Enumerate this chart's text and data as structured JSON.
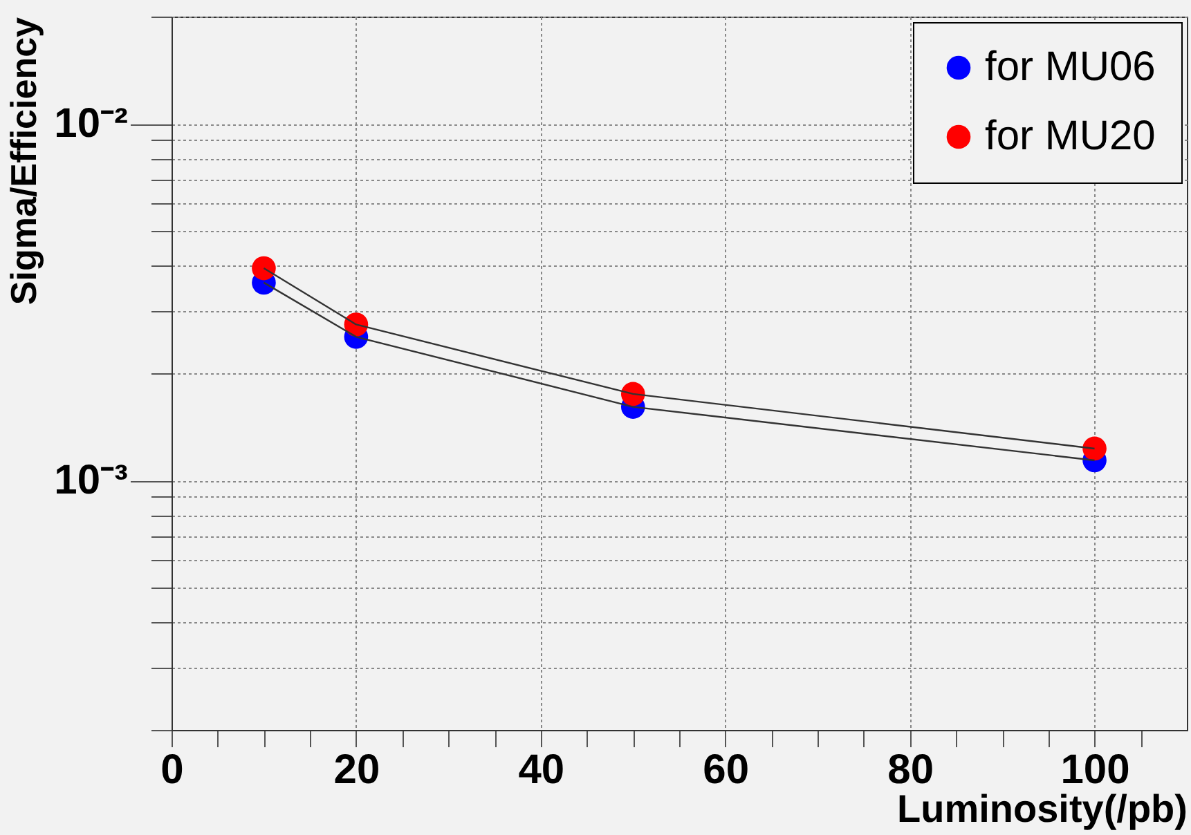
{
  "chart_data": {
    "type": "line",
    "xlabel": "Luminosity(/pb)",
    "ylabel": "Sigma/Efficiency",
    "x": [
      10,
      20,
      50,
      100
    ],
    "series": [
      {
        "name": "for MU06",
        "color": "#0000ff",
        "values": [
          0.00359,
          0.00253,
          0.00161,
          0.00114
        ]
      },
      {
        "name": "for MU20",
        "color": "#ff0000",
        "values": [
          0.00394,
          0.00274,
          0.00175,
          0.00123
        ]
      }
    ],
    "xlim": [
      0,
      110
    ],
    "xticks": [
      0,
      {
        "value": 5,
        "label": null
      },
      {
        "value": 10,
        "label": null
      },
      {
        "value": 15,
        "label": null
      },
      20,
      {
        "value": 25,
        "label": null
      },
      {
        "value": 30,
        "label": null
      },
      {
        "value": 35,
        "label": null
      },
      40,
      {
        "value": 45,
        "label": null
      },
      {
        "value": 50,
        "label": null
      },
      {
        "value": 55,
        "label": null
      },
      60,
      {
        "value": 65,
        "label": null
      },
      {
        "value": 70,
        "label": null
      },
      {
        "value": 75,
        "label": null
      },
      80,
      {
        "value": 85,
        "label": null
      },
      {
        "value": 90,
        "label": null
      },
      {
        "value": 95,
        "label": null
      },
      100,
      {
        "value": 105,
        "label": null
      }
    ],
    "ylim": [
      0.0002,
      0.02
    ],
    "log": "y",
    "yticks": [
      {
        "value": 0.0002,
        "label": null
      },
      {
        "value": 0.0003,
        "label": null
      },
      {
        "value": 0.0004,
        "label": null
      },
      {
        "value": 0.0005,
        "label": null
      },
      {
        "value": 0.0006,
        "label": null
      },
      {
        "value": 0.0007,
        "label": null
      },
      {
        "value": 0.0008,
        "label": null
      },
      {
        "value": 0.0009,
        "label": null
      },
      {
        "value": 0.001,
        "label": "10⁻³"
      },
      {
        "value": 0.002,
        "label": null
      },
      {
        "value": 0.003,
        "label": null
      },
      {
        "value": 0.004,
        "label": null
      },
      {
        "value": 0.005,
        "label": null
      },
      {
        "value": 0.006,
        "label": null
      },
      {
        "value": 0.007,
        "label": null
      },
      {
        "value": 0.008,
        "label": null
      },
      {
        "value": 0.009,
        "label": null
      },
      {
        "value": 0.01,
        "label": "10⁻²"
      },
      {
        "value": 0.02,
        "label": null
      }
    ],
    "grid": true,
    "legend": "top right",
    "marker": "circle",
    "line_style": "solid"
  }
}
